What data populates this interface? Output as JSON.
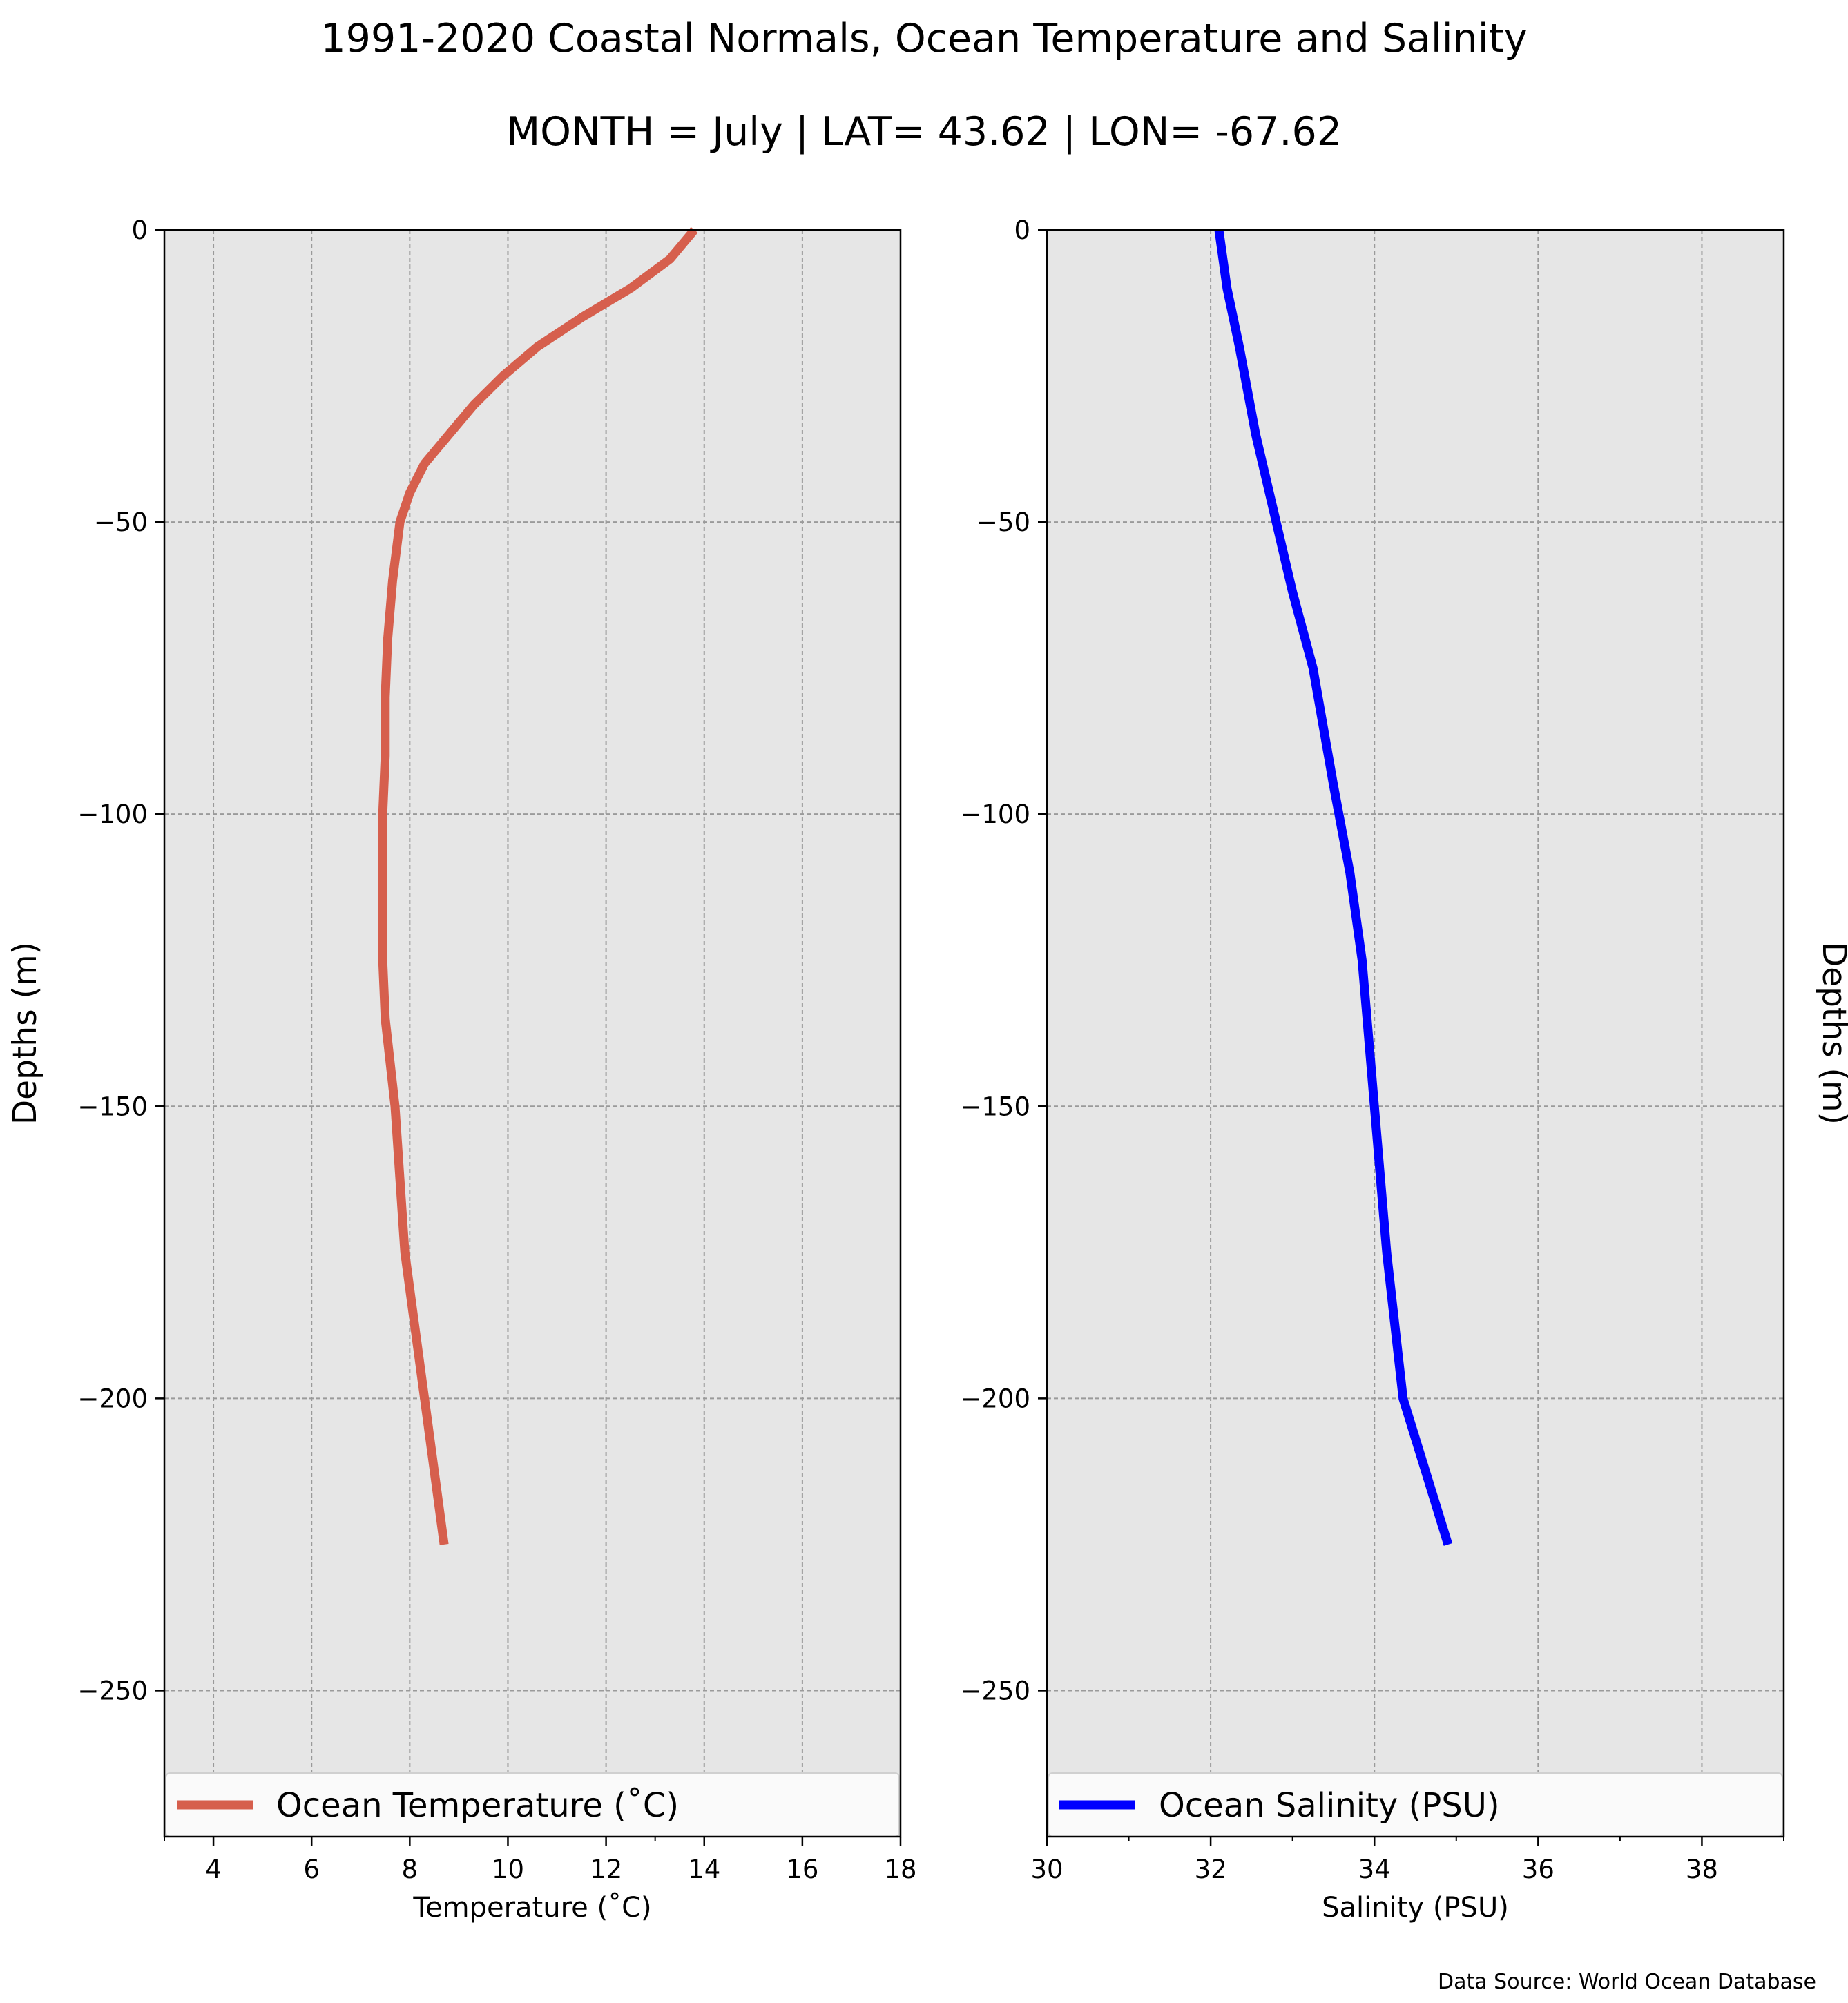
{
  "title": "1991-2020 Coastal Normals, Ocean Temperature and Salinity",
  "subtitle": "MONTH = July | LAT= 43.62 | LON= -67.62",
  "source": "Data Source: World Ocean Database",
  "colors": {
    "background": "#ffffff",
    "axes_face": "#e6e6e6",
    "grid": "#9a9a9a",
    "temperature_line": "#d65f4d",
    "salinity_line": "#0000ff"
  },
  "chart_data": [
    {
      "type": "line",
      "title": "",
      "xlabel": "Temperature ($^\\circ$C)",
      "ylabel": "Depths (m)",
      "xlim": [
        3,
        18
      ],
      "ylim": [
        -275,
        0
      ],
      "xticks": [
        4,
        6,
        8,
        10,
        12,
        14,
        16,
        18
      ],
      "xtick_labels": [
        "4",
        "6",
        "8",
        "10",
        "12",
        "14",
        "16",
        "18"
      ],
      "yticks": [
        0,
        -50,
        -100,
        -150,
        -200,
        -250
      ],
      "ytick_labels": [
        "0",
        "−50",
        "−100",
        "−150",
        "−200",
        "−250"
      ],
      "grid": true,
      "legend": "lower center",
      "series": [
        {
          "name": "Ocean Temperature ($^\\circ$C)",
          "color": "#d65f4d",
          "x": [
            13.8,
            13.3,
            12.5,
            11.5,
            10.6,
            9.9,
            9.3,
            8.8,
            8.3,
            8.0,
            7.8,
            7.65,
            7.55,
            7.5,
            7.5,
            7.45,
            7.45,
            7.45,
            7.45,
            7.5,
            7.7,
            7.9,
            8.3,
            8.7
          ],
          "y": [
            0,
            -5,
            -10,
            -15,
            -20,
            -25,
            -30,
            -35,
            -40,
            -45,
            -50,
            -60,
            -70,
            -80,
            -90,
            -100,
            -110,
            -120,
            -125,
            -135,
            -150,
            -175,
            -200,
            -225
          ]
        }
      ]
    },
    {
      "type": "line",
      "title": "",
      "xlabel": "Salinity (PSU)",
      "ylabel": "Depths (m)",
      "xlim": [
        30,
        39
      ],
      "ylim": [
        -275,
        0
      ],
      "xticks": [
        30,
        32,
        34,
        36,
        38
      ],
      "xtick_labels": [
        "30",
        "32",
        "34",
        "36",
        "38"
      ],
      "yticks": [
        0,
        -50,
        -100,
        -150,
        -200,
        -250
      ],
      "ytick_labels": [
        "0",
        "−50",
        "−100",
        "−150",
        "−200",
        "−250"
      ],
      "grid": true,
      "legend": "lower center",
      "series": [
        {
          "name": "Ocean Salinity (PSU)",
          "color": "#0000ff",
          "x": [
            32.1,
            32.2,
            32.35,
            32.55,
            32.8,
            33.0,
            33.25,
            33.5,
            33.7,
            33.85,
            34.0,
            34.15,
            34.35,
            34.9
          ],
          "y": [
            0,
            -10,
            -20,
            -35,
            -50,
            -62,
            -75,
            -95,
            -110,
            -125,
            -150,
            -175,
            -200,
            -225
          ]
        }
      ]
    }
  ]
}
